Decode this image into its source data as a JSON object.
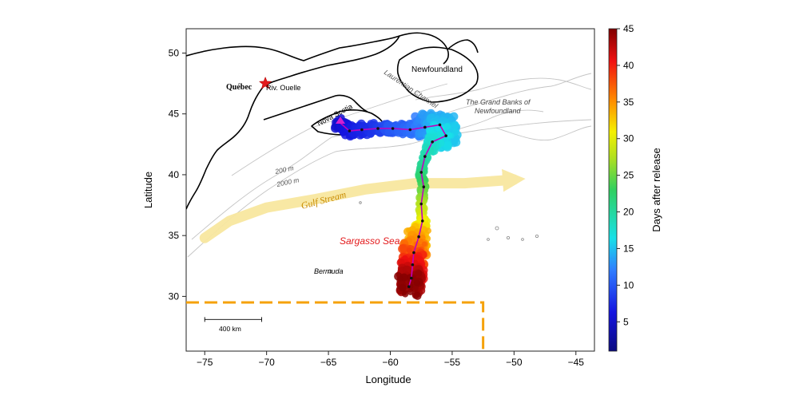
{
  "axes": {
    "xlabel": "Longitude",
    "ylabel": "Latitude",
    "xlim": [
      -76.5,
      -43.5
    ],
    "ylim": [
      25.5,
      52
    ],
    "xticks": [
      -75,
      -70,
      -65,
      -60,
      -55,
      -50,
      -45
    ],
    "yticks": [
      30,
      35,
      40,
      45,
      50
    ],
    "xtick_labels": [
      "−75",
      "−70",
      "−65",
      "−60",
      "−55",
      "−50",
      "−45"
    ],
    "ytick_labels": [
      "30",
      "35",
      "40",
      "45",
      "50"
    ]
  },
  "colorbar": {
    "label": "Days after release",
    "range": [
      1,
      45
    ],
    "ticks": [
      5,
      10,
      15,
      20,
      25,
      30,
      35,
      40,
      45
    ],
    "tick_labels": [
      "5",
      "10",
      "15",
      "20",
      "25",
      "30",
      "35",
      "40",
      "45"
    ]
  },
  "labels": {
    "quebec": "Québec",
    "riv_ouelle": "Riv. Ouelle",
    "newfoundland": "Newfoundland",
    "laurentian": "Laurentian Channel",
    "grand_banks_1": "The Grand Banks of",
    "grand_banks_2": "Newfoundland",
    "nova_scotia": "Nova Scotia",
    "iso_200": "200 m",
    "iso_2000": "2000 m",
    "gulf_stream": "Gulf Stream",
    "sargasso": "Sargasso Sea",
    "bermuda": "Bermuda",
    "scale": "400 km"
  },
  "colors": {
    "gulf_stream": "#f8e7a0",
    "gulf_stream_text": "#c88a00",
    "sargasso_text": "#e31a1c",
    "release_star": "#e31a1c",
    "zone_boundary": "#f5a20a",
    "track_line": "#c000c0",
    "isobath": "#b8b8b8"
  },
  "release_site": {
    "name": "Riv. Ouelle",
    "lon": -70.1,
    "lat": 47.5
  },
  "track": [
    {
      "lon": -64.1,
      "lat": 44.3,
      "day": 5
    },
    {
      "lon": -63.3,
      "lat": 43.6,
      "day": 6
    },
    {
      "lon": -62.3,
      "lat": 43.7,
      "day": 7
    },
    {
      "lon": -61.0,
      "lat": 43.8,
      "day": 8
    },
    {
      "lon": -59.8,
      "lat": 43.8,
      "day": 10
    },
    {
      "lon": -58.4,
      "lat": 43.7,
      "day": 11
    },
    {
      "lon": -57.2,
      "lat": 43.9,
      "day": 12
    },
    {
      "lon": -56.0,
      "lat": 44.1,
      "day": 14
    },
    {
      "lon": -55.5,
      "lat": 43.2,
      "day": 15
    },
    {
      "lon": -56.6,
      "lat": 42.7,
      "day": 17
    },
    {
      "lon": -57.2,
      "lat": 41.5,
      "day": 19
    },
    {
      "lon": -57.5,
      "lat": 40.2,
      "day": 21
    },
    {
      "lon": -57.3,
      "lat": 39.0,
      "day": 24
    },
    {
      "lon": -57.5,
      "lat": 37.6,
      "day": 27
    },
    {
      "lon": -57.4,
      "lat": 36.2,
      "day": 30
    },
    {
      "lon": -57.7,
      "lat": 34.9,
      "day": 33
    },
    {
      "lon": -58.1,
      "lat": 33.6,
      "day": 36
    },
    {
      "lon": -58.2,
      "lat": 32.6,
      "day": 39
    },
    {
      "lon": -58.3,
      "lat": 31.5,
      "day": 42
    },
    {
      "lon": -58.5,
      "lat": 30.8,
      "day": 45
    }
  ],
  "gulf_stream": [
    {
      "lon": -75.0,
      "lat": 34.8
    },
    {
      "lon": -73.0,
      "lat": 36.2
    },
    {
      "lon": -70.0,
      "lat": 37.3
    },
    {
      "lon": -66.0,
      "lat": 38.0
    },
    {
      "lon": -62.0,
      "lat": 38.8
    },
    {
      "lon": -58.0,
      "lat": 39.3
    },
    {
      "lon": -54.0,
      "lat": 39.3
    },
    {
      "lon": -50.0,
      "lat": 39.6
    }
  ],
  "zone_boundary": {
    "lat": 29.5,
    "lon_start": -76.5,
    "lon_corner": -52.5,
    "lat_end": 25.5
  },
  "scale_bar": {
    "lon_start": -75.0,
    "lon_end": -70.4,
    "lat": 28.1
  }
}
